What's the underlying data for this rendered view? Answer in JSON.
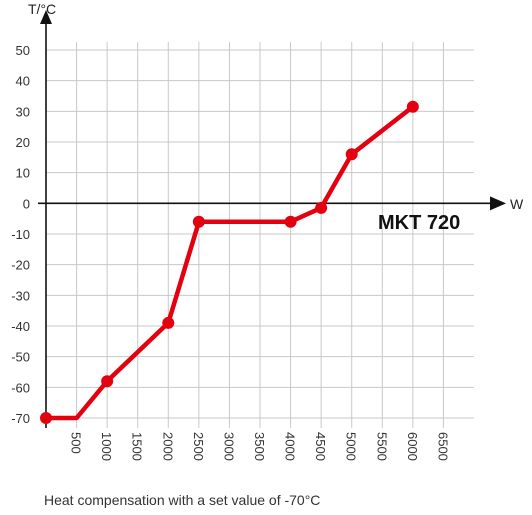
{
  "chart_data": {
    "type": "line",
    "ylabel": "T/°C",
    "xlabel": "W",
    "annotation": "MKT 720",
    "caption": "Heat compensation with a set value of -70°C",
    "xlim": [
      0,
      7000
    ],
    "ylim": [
      -70,
      50
    ],
    "x_ticks": [
      500,
      1000,
      1500,
      2000,
      2500,
      3000,
      3500,
      4000,
      4500,
      5000,
      5500,
      6000,
      6500
    ],
    "x_tick_labels": [
      "500",
      "1000",
      "1500",
      "2000",
      "2500",
      "3000",
      "3500",
      "4000",
      "4500",
      "5000",
      "5500",
      "6000",
      "6500"
    ],
    "y_ticks": [
      -70,
      -60,
      -50,
      -40,
      -30,
      -20,
      -10,
      0,
      10,
      20,
      30,
      40,
      50
    ],
    "y_tick_labels": [
      "-70",
      "-60",
      "-50",
      "-40",
      "-30",
      "-20",
      "-10",
      "0",
      "10",
      "20",
      "30",
      "40",
      "50"
    ],
    "grid": true,
    "series": [
      {
        "x": [
          0,
          500,
          1000,
          2000,
          2500,
          4000,
          4500,
          5000,
          6000
        ],
        "y": [
          -70,
          -70,
          -58,
          -39,
          -6,
          -6,
          -1.5,
          16,
          31.5
        ],
        "markers": [
          true,
          false,
          true,
          true,
          true,
          true,
          true,
          true,
          true
        ]
      }
    ],
    "colors": {
      "line": "#e3000f",
      "marker": "#e3000f",
      "grid": "#c8c8c8",
      "axis": "#111111"
    }
  }
}
